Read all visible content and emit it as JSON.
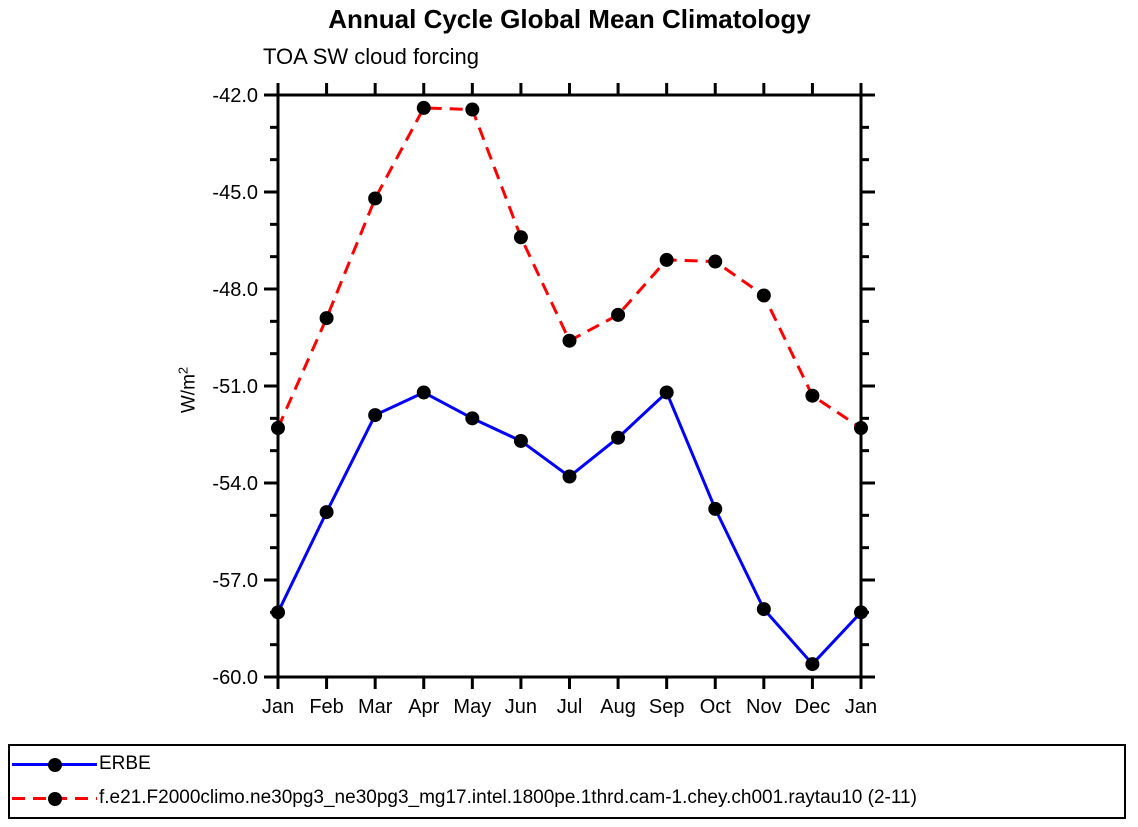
{
  "title": "Annual Cycle Global Mean Climatology",
  "subtitle": "TOA SW cloud forcing",
  "y_axis_label": {
    "base": "W/m",
    "sup": "2"
  },
  "chart_data": {
    "type": "line",
    "title": "Annual Cycle Global Mean Climatology",
    "subtitle": "TOA SW cloud forcing",
    "ylabel": "W/m^2",
    "xlabel": "",
    "categories": [
      "Jan",
      "Feb",
      "Mar",
      "Apr",
      "May",
      "Jun",
      "Jul",
      "Aug",
      "Sep",
      "Oct",
      "Nov",
      "Dec",
      "Jan"
    ],
    "ylim": [
      -60.0,
      -42.0
    ],
    "ytick_major": [
      -42.0,
      -45.0,
      -48.0,
      -51.0,
      -54.0,
      -57.0,
      -60.0
    ],
    "ytick_labels": [
      "-42.0",
      "-45.0",
      "-48.0",
      "-51.0",
      "-54.0",
      "-57.0",
      "-60.0"
    ],
    "ytick_minor_step": 1.0,
    "grid": false,
    "legend_position": "bottom",
    "marker": {
      "shape": "circle",
      "color": "#000000",
      "radius": 7
    },
    "series": [
      {
        "name": "ERBE",
        "color": "#0000ff",
        "line_style": "solid",
        "values": [
          -58.0,
          -54.9,
          -51.9,
          -51.2,
          -52.0,
          -52.7,
          -53.8,
          -52.6,
          -51.2,
          -54.8,
          -57.9,
          -59.6,
          -58.0
        ]
      },
      {
        "name": "f.e21.F2000climo.ne30pg3_ne30pg3_mg17.intel.1800pe.1thrd.cam-1.chey.ch001.raytau10 (2-11)",
        "color": "#ff0000",
        "line_style": "dashed",
        "values": [
          -52.3,
          -48.9,
          -45.2,
          -42.4,
          -42.45,
          -46.4,
          -49.6,
          -48.8,
          -47.1,
          -47.15,
          -48.2,
          -51.3,
          -52.3
        ]
      }
    ]
  }
}
